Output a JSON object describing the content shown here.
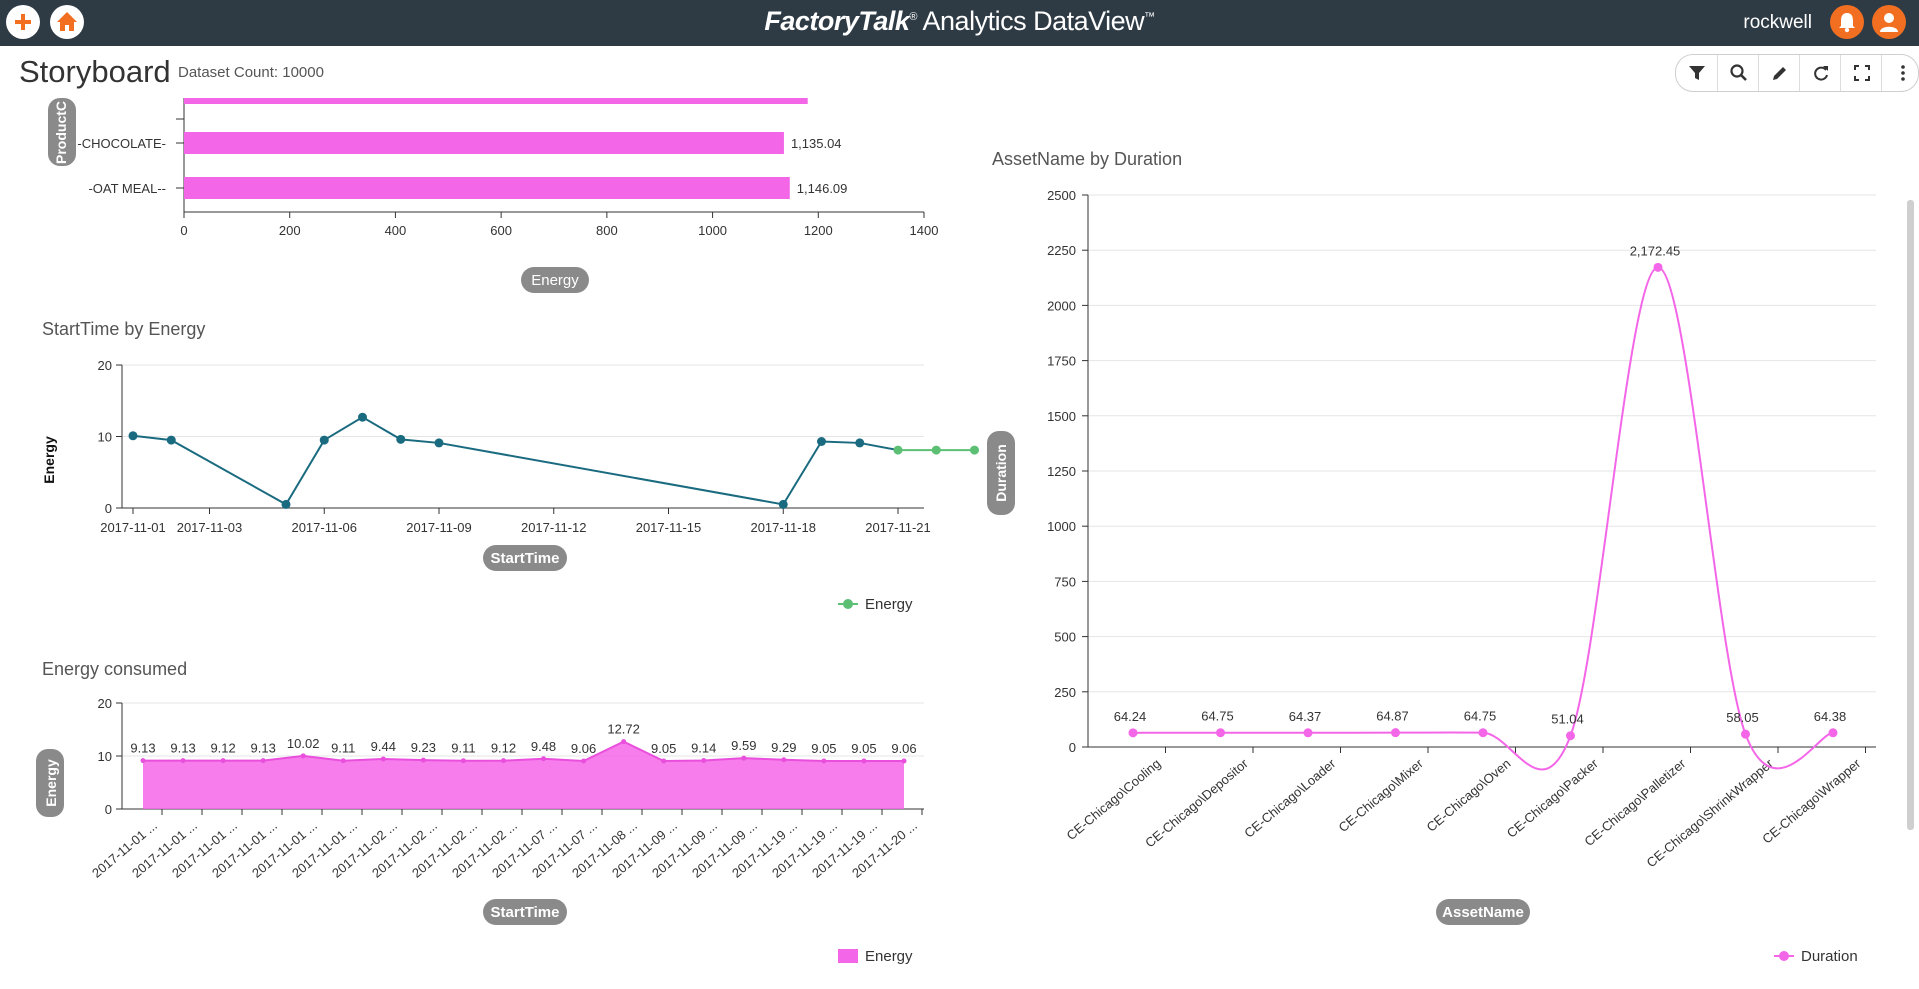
{
  "app": {
    "brand_bold": "FactoryTalk",
    "brand_rest": "Analytics DataView",
    "reg": "®",
    "tm": "™",
    "user": "rockwell"
  },
  "page": {
    "title": "Storyboard",
    "dataset_count": "Dataset Count: 10000"
  },
  "colors": {
    "header_bg": "#2e3b45",
    "accent": "#f26f21",
    "pink": "#f466e8",
    "teal": "#1a6b80",
    "green": "#5cbf73"
  },
  "icons": {
    "add": "add-icon",
    "home": "home-icon",
    "bell": "bell-icon",
    "user": "user-icon",
    "filter": "filter-icon",
    "search": "search-icon",
    "edit": "pencil-icon",
    "refresh": "refresh-icon",
    "expand": "expand-icon",
    "more": "more-vertical-icon"
  },
  "chart_data": [
    {
      "type": "bar",
      "orientation": "horizontal",
      "categories": [
        "-CHOCOLATE-",
        "-OAT MEAL--"
      ],
      "values": [
        1135.04,
        1146.09
      ],
      "data_labels": [
        "1,135.04",
        "1,146.09"
      ],
      "partial_top_bar_value": 1180,
      "ylabel": "ProductC",
      "xlabel": "Energy",
      "xticks": [
        "0",
        "200",
        "400",
        "600",
        "800",
        "1000",
        "1200",
        "1400"
      ],
      "xlim": [
        0,
        1400
      ]
    },
    {
      "type": "line",
      "title": "StartTime by Energy",
      "xlabel": "StartTime",
      "ylabel": "Energy",
      "xticks": [
        "2017-11-01",
        "2017-11-03",
        "2017-11-06",
        "2017-11-09",
        "2017-11-12",
        "2017-11-15",
        "2017-11-18",
        "2017-11-21"
      ],
      "yticks": [
        "0",
        "10",
        "20"
      ],
      "ylim": [
        0,
        20
      ],
      "x": [
        "2017-11-01",
        "2017-11-02",
        "2017-11-05",
        "2017-11-06",
        "2017-11-07",
        "2017-11-08",
        "2017-11-09",
        "2017-11-18",
        "2017-11-19",
        "2017-11-20",
        "2017-11-21",
        "2017-11-22",
        "2017-11-23"
      ],
      "series": [
        {
          "name": "Energy",
          "values": [
            10.1,
            9.5,
            0.5,
            9.5,
            12.7,
            9.6,
            9.1,
            0.5,
            9.3,
            9.1,
            8.1,
            8.1,
            8.1
          ]
        }
      ],
      "legend": "bottom-right"
    },
    {
      "type": "area",
      "title": "Energy consumed",
      "xlabel": "StartTime",
      "ylabel": "Energy",
      "yticks": [
        "0",
        "10",
        "20"
      ],
      "ylim": [
        0,
        20
      ],
      "categories": [
        "2017-11-01 ...",
        "2017-11-01 ...",
        "2017-11-01 ...",
        "2017-11-01 ...",
        "2017-11-01 ...",
        "2017-11-01 ...",
        "2017-11-02 ...",
        "2017-11-02 ...",
        "2017-11-02 ...",
        "2017-11-02 ...",
        "2017-11-07 ...",
        "2017-11-07 ...",
        "2017-11-08 ...",
        "2017-11-09 ...",
        "2017-11-09 ...",
        "2017-11-09 ...",
        "2017-11-19 ...",
        "2017-11-19 ...",
        "2017-11-19 ...",
        "2017-11-20 ..."
      ],
      "values": [
        9.13,
        9.13,
        9.12,
        9.13,
        10.02,
        9.11,
        9.44,
        9.23,
        9.11,
        9.12,
        9.48,
        9.06,
        12.72,
        9.05,
        9.14,
        9.59,
        9.29,
        9.05,
        9.05,
        9.06
      ],
      "data_labels": [
        "9.13",
        "9.13",
        "9.12",
        "9.13",
        "10.02",
        "9.11",
        "9.44",
        "9.23",
        "9.11",
        "9.12",
        "9.48",
        "9.06",
        "12.72",
        "9.05",
        "9.14",
        "9.59",
        "9.29",
        "9.05",
        "9.05",
        "9.06"
      ],
      "series": [
        {
          "name": "Energy"
        }
      ],
      "legend": "bottom-right"
    },
    {
      "type": "line",
      "title": "AssetName by Duration",
      "xlabel": "AssetName",
      "ylabel": "Duration",
      "yticks": [
        "0",
        "250",
        "500",
        "750",
        "1000",
        "1250",
        "1500",
        "1750",
        "2000",
        "2250",
        "2500"
      ],
      "ylim": [
        0,
        2500
      ],
      "categories": [
        "CE-Chicago\\Cooling",
        "CE-Chicago\\Depositor",
        "CE-Chicago\\Loader",
        "CE-Chicago\\Mixer",
        "CE-Chicago\\Oven",
        "CE-Chicago\\Packer",
        "CE-Chicago\\Palletizer",
        "CE-Chicago\\ShrinkWrapper",
        "CE-Chicago\\Wrapper"
      ],
      "values": [
        64.24,
        64.75,
        64.37,
        64.87,
        64.75,
        51.04,
        2172.45,
        58.05,
        64.38
      ],
      "data_labels": [
        "64.24",
        "64.75",
        "64.37",
        "64.87",
        "64.75",
        "51.04",
        "2,172.45",
        "58.05",
        "64.38"
      ],
      "series": [
        {
          "name": "Duration"
        }
      ],
      "legend": "bottom-right"
    }
  ]
}
